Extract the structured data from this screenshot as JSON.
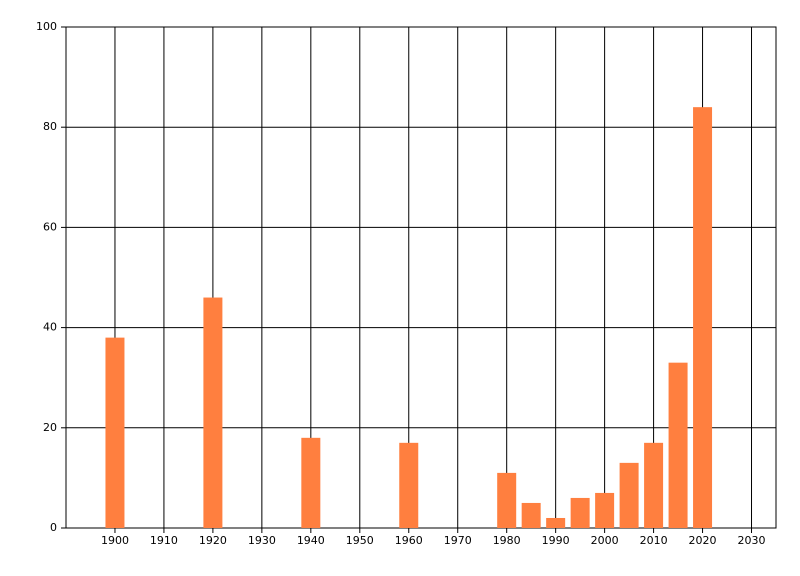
{
  "chart_data": {
    "type": "bar",
    "x": [
      1900,
      1920,
      1940,
      1960,
      1980,
      1985,
      1990,
      1995,
      2000,
      2005,
      2010,
      2015,
      2020
    ],
    "values": [
      38,
      46,
      18,
      17,
      11,
      5,
      2,
      6,
      7,
      13,
      17,
      33,
      84
    ],
    "color": "#ff7f3f",
    "xlim": [
      1890,
      2035
    ],
    "xticks": [
      1900,
      1910,
      1920,
      1930,
      1940,
      1950,
      1960,
      1970,
      1980,
      1990,
      2000,
      2010,
      2020,
      2030
    ],
    "ylim": [
      0,
      100
    ],
    "yticks": [
      0,
      20,
      40,
      60,
      80,
      100
    ],
    "grid": true
  }
}
